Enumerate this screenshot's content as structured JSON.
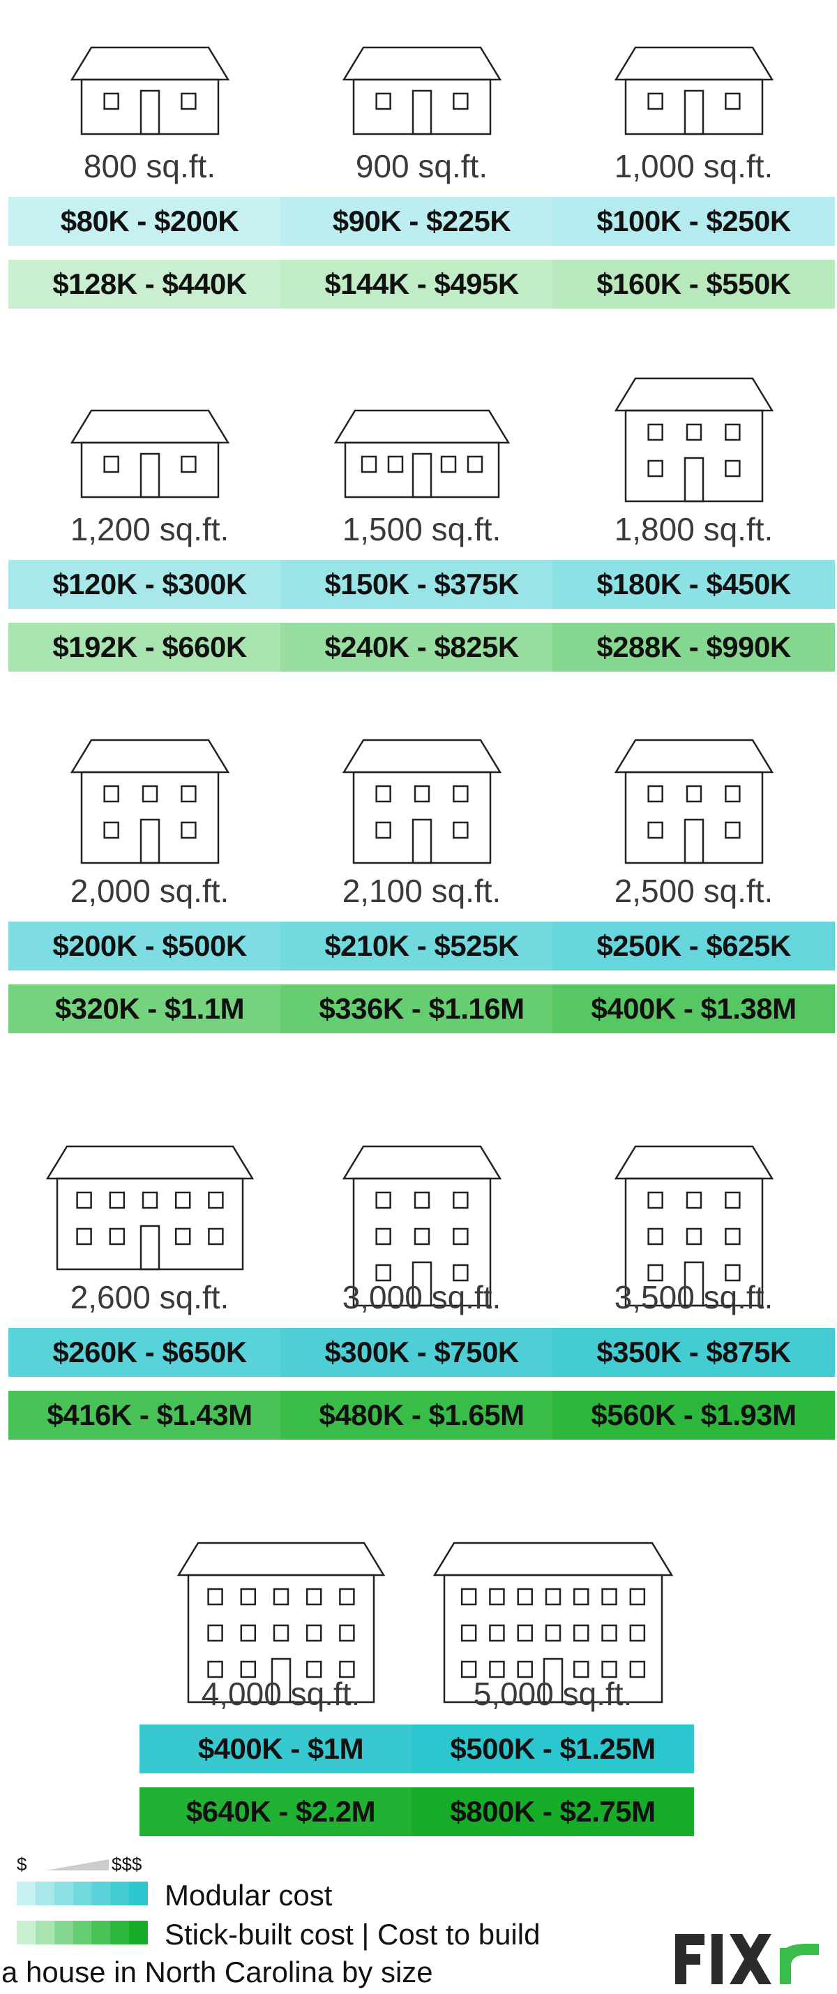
{
  "houses": [
    {
      "size": "800 sq.ft.",
      "modular": "$80K - $200K",
      "stick": "$128K - $440K",
      "floors": 1,
      "cols": 2,
      "modular_color": "#c6f0f1",
      "stick_color": "#c9efd0"
    },
    {
      "size": "900 sq.ft.",
      "modular": "$90K - $225K",
      "stick": "$144K - $495K",
      "floors": 1,
      "cols": 2,
      "modular_color": "#bcedef",
      "stick_color": "#c0ecc6"
    },
    {
      "size": "1,000 sq.ft.",
      "modular": "$100K - $250K",
      "stick": "$160K - $550K",
      "floors": 1,
      "cols": 2,
      "modular_color": "#b4ebee",
      "stick_color": "#b7e9bd"
    },
    {
      "size": "1,200 sq.ft.",
      "modular": "$120K - $300K",
      "stick": "$192K - $660K",
      "floors": 1,
      "cols": 2,
      "modular_color": "#a8e8eb",
      "stick_color": "#a9e4b0"
    },
    {
      "size": "1,500 sq.ft.",
      "modular": "$150K - $375K",
      "stick": "$240K - $825K",
      "floors": 1,
      "cols": 4,
      "modular_color": "#9ae4e8",
      "stick_color": "#98dea0"
    },
    {
      "size": "1,800 sq.ft.",
      "modular": "$180K - $450K",
      "stick": "$288K - $990K",
      "floors": 2,
      "cols": 3,
      "modular_color": "#8ce1e5",
      "stick_color": "#86d890"
    },
    {
      "size": "2,000 sq.ft.",
      "modular": "$200K - $500K",
      "stick": "$320K - $1.1M",
      "floors": 2,
      "cols": 3,
      "modular_color": "#7edde2",
      "stick_color": "#75d27f"
    },
    {
      "size": "2,100 sq.ft.",
      "modular": "$210K - $525K",
      "stick": "$336K - $1.16M",
      "floors": 2,
      "cols": 3,
      "modular_color": "#72d9df",
      "stick_color": "#66cd71"
    },
    {
      "size": "2,500 sq.ft.",
      "modular": "$250K - $625K",
      "stick": "$400K - $1.38M",
      "floors": 2,
      "cols": 3,
      "modular_color": "#66d6dc",
      "stick_color": "#56c763"
    },
    {
      "size": "2,600 sq.ft.",
      "modular": "$260K - $650K",
      "stick": "$416K - $1.43M",
      "floors": 2,
      "cols": 5,
      "modular_color": "#5ad2d9",
      "stick_color": "#48c156"
    },
    {
      "size": "3,000 sq.ft.",
      "modular": "$300K - $750K",
      "stick": "$480K - $1.65M",
      "floors": 3,
      "cols": 3,
      "modular_color": "#4ecfd6",
      "stick_color": "#3abc49"
    },
    {
      "size": "3,500 sq.ft.",
      "modular": "$350K - $875K",
      "stick": "$560K - $1.93M",
      "floors": 3,
      "cols": 3,
      "modular_color": "#44ccd3",
      "stick_color": "#2db73d"
    },
    {
      "size": "4,000 sq.ft.",
      "modular": "$400K - $1M",
      "stick": "$640K - $2.2M",
      "floors": 3,
      "cols": 5,
      "modular_color": "#38c9d0",
      "stick_color": "#22b233"
    },
    {
      "size": "5,000 sq.ft.",
      "modular": "$500K - $1.25M",
      "stick": "$800K - $2.75M",
      "floors": 3,
      "cols": 6,
      "modular_color": "#2cc6ce",
      "stick_color": "#17ad29"
    }
  ],
  "legend": {
    "scale_low": "$",
    "scale_high": "$$$",
    "modular_label": "Modular cost",
    "stick_label": "Stick-built cost | Cost to build",
    "caption": "a house in North Carolina by size",
    "modular_ramp": [
      "#c6f0f1",
      "#a8e8eb",
      "#8ce1e5",
      "#72d9df",
      "#5ad2d9",
      "#44ccd3",
      "#2cc6ce"
    ],
    "stick_ramp": [
      "#c9efd0",
      "#a9e4b0",
      "#86d890",
      "#66cd71",
      "#48c156",
      "#2db73d",
      "#17ad29"
    ]
  },
  "logo": {
    "text": "FIXR"
  }
}
